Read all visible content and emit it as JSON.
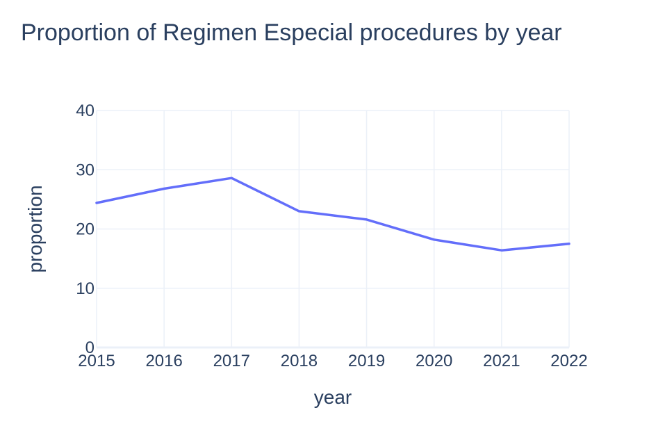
{
  "chart_data": {
    "type": "line",
    "title": "Proportion of Regimen Especial procedures by year",
    "xlabel": "year",
    "ylabel": "proportion",
    "x": [
      2015,
      2016,
      2017,
      2018,
      2019,
      2020,
      2021,
      2022
    ],
    "series": [
      {
        "values": [
          24.4,
          26.8,
          28.6,
          23.0,
          21.6,
          18.2,
          16.4,
          17.5
        ]
      }
    ],
    "xlim": [
      2015,
      2022
    ],
    "ylim": [
      0,
      40
    ],
    "yticks": [
      0,
      10,
      20,
      30,
      40
    ],
    "xticks": [
      2015,
      2016,
      2017,
      2018,
      2019,
      2020,
      2021,
      2022
    ],
    "grid": true,
    "legend": "none",
    "colors": {
      "line": "#636efa",
      "grid": "#ebf0f8",
      "text": "#2a3f5f",
      "zeroline": "#ebf0f8"
    }
  }
}
